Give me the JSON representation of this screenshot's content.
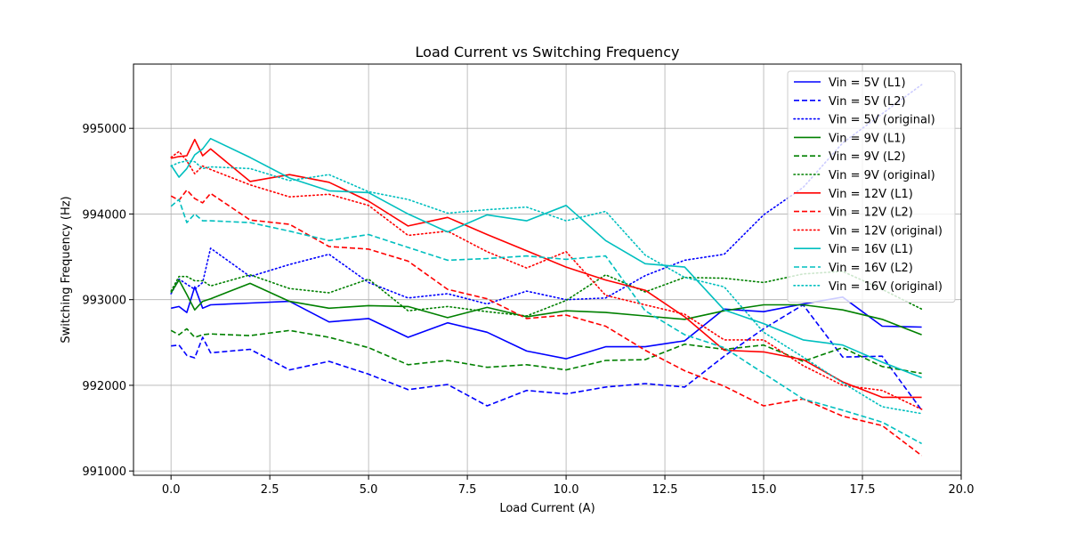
{
  "chart_data": {
    "type": "line",
    "title": "Load Current vs Switching Frequency",
    "xlabel": "Load Current (A)",
    "ylabel": "Switching Frequency (Hz)",
    "xlim": [
      -0.95,
      20.0
    ],
    "ylim": [
      990950,
      995750
    ],
    "xticks": [
      0.0,
      2.5,
      5.0,
      7.5,
      10.0,
      12.5,
      15.0,
      17.5,
      20.0
    ],
    "xtick_labels": [
      "0.0",
      "2.5",
      "5.0",
      "7.5",
      "10.0",
      "12.5",
      "15.0",
      "17.5",
      "20.0"
    ],
    "yticks": [
      991000,
      992000,
      993000,
      994000,
      995000
    ],
    "ytick_labels": [
      "991000",
      "992000",
      "993000",
      "994000",
      "995000"
    ],
    "grid": true,
    "legend_position": "top-right",
    "colors": {
      "5V": "#0000ff",
      "9V": "#008000",
      "12V": "#ff0000",
      "16V": "#00bfbf"
    },
    "series": [
      {
        "name": "Vin = 5V (L1)",
        "color": "#0000ff",
        "style": "solid",
        "x": [
          0,
          0.2,
          0.4,
          0.6,
          0.8,
          1,
          2,
          3,
          4,
          5,
          6,
          7,
          8,
          9,
          10,
          11,
          12,
          13,
          14,
          15,
          16,
          17,
          18,
          19
        ],
        "y": [
          992900,
          992920,
          992850,
          993150,
          992900,
          992940,
          992960,
          992980,
          992740,
          992780,
          992560,
          992730,
          992620,
          992400,
          992310,
          992450,
          992450,
          992520,
          992890,
          992860,
          992950,
          993030,
          992690,
          992680
        ]
      },
      {
        "name": "Vin = 5V (L2)",
        "color": "#0000ff",
        "style": "dashed",
        "x": [
          0,
          0.2,
          0.4,
          0.6,
          0.8,
          1,
          2,
          3,
          4,
          5,
          6,
          7,
          8,
          9,
          10,
          11,
          12,
          13,
          14,
          15,
          16,
          17,
          18,
          19
        ],
        "y": [
          992460,
          992470,
          992350,
          992320,
          992560,
          992380,
          992420,
          992180,
          992280,
          992130,
          991950,
          992010,
          991760,
          991940,
          991900,
          991980,
          992020,
          991980,
          992340,
          992660,
          992940,
          992330,
          992340,
          991710
        ]
      },
      {
        "name": "Vin = 5V (original)",
        "color": "#0000ff",
        "style": "dotted",
        "x": [
          0,
          0.2,
          0.4,
          0.6,
          0.8,
          1,
          2,
          3,
          4,
          5,
          6,
          7,
          8,
          9,
          10,
          11,
          12,
          13,
          14,
          15,
          16,
          17,
          18,
          19
        ],
        "y": [
          993070,
          993240,
          993180,
          993120,
          993200,
          993600,
          993270,
          993410,
          993530,
          993200,
          993020,
          993070,
          992950,
          993100,
          993000,
          993020,
          993280,
          993460,
          993530,
          993990,
          994310,
          994830,
          995170,
          995510
        ]
      },
      {
        "name": "Vin = 9V (L1)",
        "color": "#008000",
        "style": "solid",
        "x": [
          0,
          0.2,
          0.4,
          0.6,
          0.8,
          1,
          2,
          3,
          4,
          5,
          6,
          7,
          8,
          9,
          10,
          11,
          12,
          13,
          14,
          15,
          16,
          17,
          18,
          19
        ],
        "y": [
          993080,
          993230,
          993060,
          992880,
          992980,
          993010,
          993190,
          992980,
          992900,
          992930,
          992920,
          992790,
          992910,
          992800,
          992870,
          992850,
          992810,
          992770,
          992870,
          992940,
          992940,
          992880,
          992770,
          992590
        ]
      },
      {
        "name": "Vin = 9V (L2)",
        "color": "#008000",
        "style": "dashed",
        "x": [
          0,
          0.2,
          0.4,
          0.6,
          0.8,
          1,
          2,
          3,
          4,
          5,
          6,
          7,
          8,
          9,
          10,
          11,
          12,
          13,
          14,
          15,
          16,
          17,
          18,
          19
        ],
        "y": [
          992640,
          992590,
          992660,
          992560,
          992590,
          992600,
          992580,
          992640,
          992560,
          992440,
          992240,
          992290,
          992210,
          992240,
          992180,
          992290,
          992300,
          992480,
          992420,
          992470,
          992280,
          992440,
          992220,
          992140
        ]
      },
      {
        "name": "Vin = 9V (original)",
        "color": "#008000",
        "style": "dotted",
        "x": [
          0,
          0.2,
          0.4,
          0.6,
          0.8,
          1,
          2,
          3,
          4,
          5,
          6,
          7,
          8,
          9,
          10,
          11,
          12,
          13,
          14,
          15,
          16,
          17,
          18,
          19
        ],
        "y": [
          993100,
          993270,
          993270,
          993220,
          993220,
          993160,
          993290,
          993130,
          993080,
          993240,
          992870,
          992920,
          992860,
          992810,
          992990,
          993290,
          993090,
          993260,
          993250,
          993200,
          993300,
          993330,
          993120,
          992890
        ]
      },
      {
        "name": "Vin = 12V (L1)",
        "color": "#ff0000",
        "style": "solid",
        "x": [
          0,
          0.2,
          0.4,
          0.6,
          0.8,
          1,
          2,
          3,
          4,
          5,
          6,
          7,
          8,
          9,
          10,
          11,
          12,
          13,
          14,
          15,
          16,
          17,
          18,
          19
        ],
        "y": [
          994650,
          994670,
          994680,
          994870,
          994680,
          994760,
          994380,
          994460,
          994370,
          994150,
          993860,
          993960,
          993760,
          993570,
          993380,
          993230,
          993110,
          992800,
          992410,
          992390,
          992300,
          992040,
          991860,
          991860
        ]
      },
      {
        "name": "Vin = 12V (L2)",
        "color": "#ff0000",
        "style": "dashed",
        "x": [
          0,
          0.2,
          0.4,
          0.6,
          0.8,
          1,
          2,
          3,
          4,
          5,
          6,
          7,
          8,
          9,
          10,
          11,
          12,
          13,
          14,
          15,
          16,
          17,
          18,
          19
        ],
        "y": [
          994210,
          994160,
          994280,
          994180,
          994130,
          994240,
          993930,
          993880,
          993620,
          993590,
          993450,
          993120,
          993010,
          992780,
          992820,
          992690,
          992410,
          992170,
          991990,
          991760,
          991840,
          991640,
          991530,
          991180
        ]
      },
      {
        "name": "Vin = 12V (original)",
        "color": "#ff0000",
        "style": "dotted",
        "x": [
          0,
          0.2,
          0.4,
          0.6,
          0.8,
          1,
          2,
          3,
          4,
          5,
          6,
          7,
          8,
          9,
          10,
          11,
          12,
          13,
          14,
          15,
          16,
          17,
          18,
          19
        ],
        "y": [
          994660,
          994730,
          994620,
          994470,
          994560,
          994520,
          994340,
          994200,
          994230,
          994100,
          993750,
          993800,
          993560,
          993370,
          993560,
          993050,
          992940,
          992830,
          992530,
          992530,
          992230,
          992000,
          991940,
          991720
        ]
      },
      {
        "name": "Vin = 16V (L1)",
        "color": "#00bfbf",
        "style": "solid",
        "x": [
          0,
          0.2,
          0.4,
          0.6,
          0.8,
          1,
          2,
          3,
          4,
          5,
          6,
          7,
          8,
          9,
          10,
          11,
          12,
          13,
          14,
          15,
          16,
          17,
          18,
          19
        ],
        "y": [
          994570,
          994430,
          994530,
          994690,
          994760,
          994880,
          994660,
          994420,
          994270,
          994250,
          994000,
          993790,
          993990,
          993920,
          994100,
          993690,
          993420,
          993380,
          992880,
          992720,
          992530,
          992470,
          992270,
          992090
        ]
      },
      {
        "name": "Vin = 16V (L2)",
        "color": "#00bfbf",
        "style": "dashed",
        "x": [
          0,
          0.2,
          0.4,
          0.6,
          0.8,
          1,
          2,
          3,
          4,
          5,
          6,
          7,
          8,
          9,
          10,
          11,
          12,
          13,
          14,
          15,
          16,
          17,
          18,
          19
        ],
        "y": [
          994090,
          994170,
          993900,
          994000,
          993920,
          993920,
          993900,
          993800,
          993690,
          993760,
          993610,
          993460,
          993480,
          993510,
          993470,
          993510,
          992870,
          992590,
          992440,
          992140,
          991840,
          991710,
          991570,
          991320
        ]
      },
      {
        "name": "Vin = 16V (original)",
        "color": "#00bfbf",
        "style": "dotted",
        "x": [
          0,
          0.2,
          0.4,
          0.6,
          0.8,
          1,
          2,
          3,
          4,
          5,
          6,
          7,
          8,
          9,
          10,
          11,
          12,
          13,
          14,
          15,
          16,
          17,
          18,
          19
        ],
        "y": [
          994560,
          994600,
          994620,
          994610,
          994530,
          994550,
          994530,
          994390,
          994460,
          994260,
          994170,
          994010,
          994050,
          994080,
          993920,
          994030,
          993520,
          993260,
          993150,
          992620,
          992330,
          992030,
          991750,
          991670
        ]
      }
    ]
  }
}
